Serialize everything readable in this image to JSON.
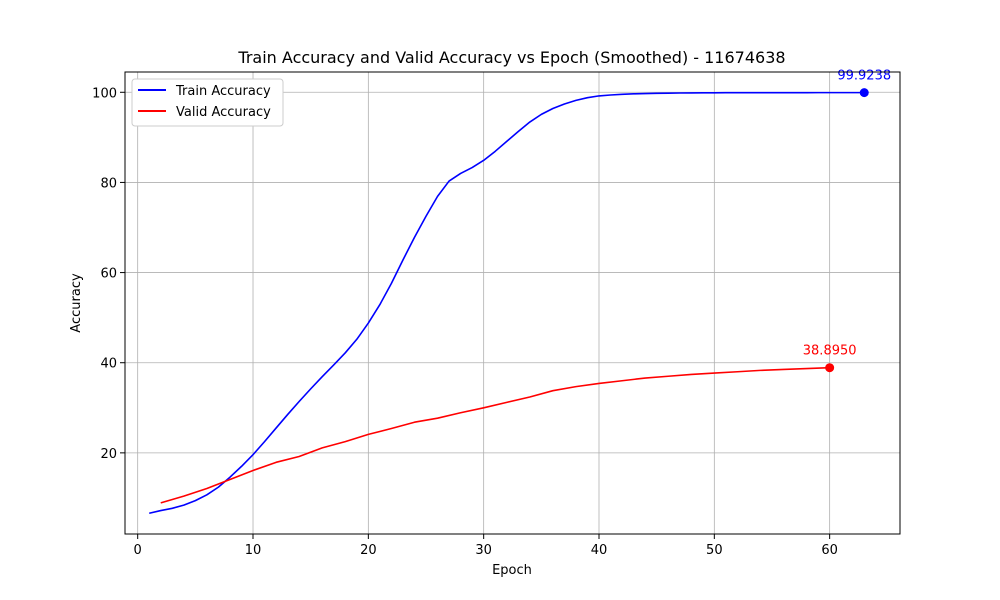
{
  "chart_data": {
    "type": "line",
    "title": "Train Accuracy and Valid Accuracy vs Epoch (Smoothed) - 11674638",
    "xlabel": "Epoch",
    "ylabel": "Accuracy",
    "xlim": [
      -1.1,
      66.1
    ],
    "ylim": [
      2.0,
      104.5
    ],
    "xticks": [
      0,
      10,
      20,
      30,
      40,
      50,
      60
    ],
    "yticks": [
      20,
      40,
      60,
      80,
      100
    ],
    "grid": true,
    "legend_position": "top-left",
    "series": [
      {
        "name": "Train Accuracy",
        "color": "#0000ff",
        "x": [
          1,
          2,
          3,
          4,
          5,
          6,
          7,
          8,
          9,
          10,
          11,
          12,
          13,
          14,
          15,
          16,
          17,
          18,
          19,
          20,
          21,
          22,
          23,
          24,
          25,
          26,
          27,
          28,
          29,
          30,
          31,
          32,
          33,
          34,
          35,
          36,
          37,
          38,
          39,
          40,
          41,
          42,
          43,
          44,
          45,
          46,
          47,
          48,
          49,
          50,
          51,
          52,
          53,
          54,
          55,
          56,
          57,
          58,
          59,
          60,
          61,
          62,
          63
        ],
        "y": [
          6.6,
          7.2,
          7.7,
          8.4,
          9.4,
          10.7,
          12.4,
          14.6,
          17.0,
          19.6,
          22.5,
          25.5,
          28.5,
          31.4,
          34.2,
          36.9,
          39.5,
          42.2,
          45.2,
          48.8,
          52.9,
          57.6,
          62.8,
          67.8,
          72.5,
          76.9,
          80.3,
          82.0,
          83.3,
          84.9,
          86.9,
          89.1,
          91.3,
          93.4,
          95.1,
          96.4,
          97.4,
          98.2,
          98.8,
          99.2,
          99.4,
          99.55,
          99.65,
          99.72,
          99.77,
          99.81,
          99.84,
          99.86,
          99.88,
          99.89,
          99.9,
          99.905,
          99.91,
          99.913,
          99.916,
          99.918,
          99.92,
          99.921,
          99.922,
          99.923,
          99.9235,
          99.9237,
          99.9238
        ],
        "end_label": "99.9238"
      },
      {
        "name": "Valid Accuracy",
        "color": "#ff0000",
        "x": [
          2,
          4,
          6,
          8,
          10,
          12,
          14,
          16,
          18,
          20,
          22,
          24,
          26,
          28,
          30,
          32,
          34,
          36,
          38,
          40,
          42,
          44,
          46,
          48,
          50,
          52,
          54,
          56,
          58,
          60
        ],
        "y": [
          8.9,
          10.4,
          12.1,
          14.1,
          16.1,
          17.9,
          19.2,
          21.1,
          22.5,
          24.1,
          25.4,
          26.8,
          27.7,
          28.9,
          30.0,
          31.2,
          32.4,
          33.8,
          34.7,
          35.4,
          36.0,
          36.6,
          37.0,
          37.4,
          37.7,
          38.0,
          38.3,
          38.5,
          38.7,
          38.895
        ],
        "end_label": "38.8950"
      }
    ]
  }
}
